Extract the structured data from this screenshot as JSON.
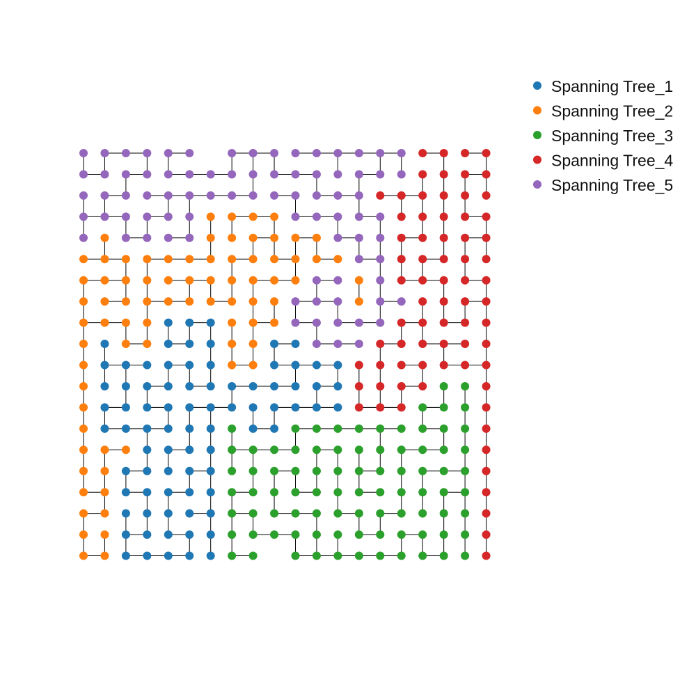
{
  "chart_data": {
    "type": "scatter",
    "grid": false,
    "axes_visible": false,
    "legend_placement": "top-right outside",
    "x_range": [
      0,
      19
    ],
    "y_range": [
      0,
      19
    ],
    "legend": [
      {
        "name": "Spanning Tree_1",
        "color": "#1f77b4"
      },
      {
        "name": "Spanning Tree_2",
        "color": "#ff7f0e"
      },
      {
        "name": "Spanning Tree_3",
        "color": "#2ca02c"
      },
      {
        "name": "Spanning Tree_4",
        "color": "#d62728"
      },
      {
        "name": "Spanning Tree_5",
        "color": "#9467bd"
      }
    ],
    "edge_color": "#000000",
    "regions_row_major_top_to_bottom": [
      "55555555555555554444",
      "55555555555555554444",
      "55555555555555444444",
      "55555522225555544444",
      "52555522222255544444",
      "22222222222225544444",
      "22222222222552544444",
      "22222222225552554444",
      "22221112225555544444",
      "21221112211555444444",
      "21111112211114444444",
      "21111111111114444334",
      "21111111111114443334",
      "21111113113333333334",
      "22211113333333333334",
      "22111113333333333334",
      "22111113333333333334",
      "22111113333333333334",
      "22111113333333333334",
      "22111113333333333334"
    ],
    "empty_positions": [
      [
        6,
        0
      ],
      [
        9,
        19
      ]
    ]
  }
}
